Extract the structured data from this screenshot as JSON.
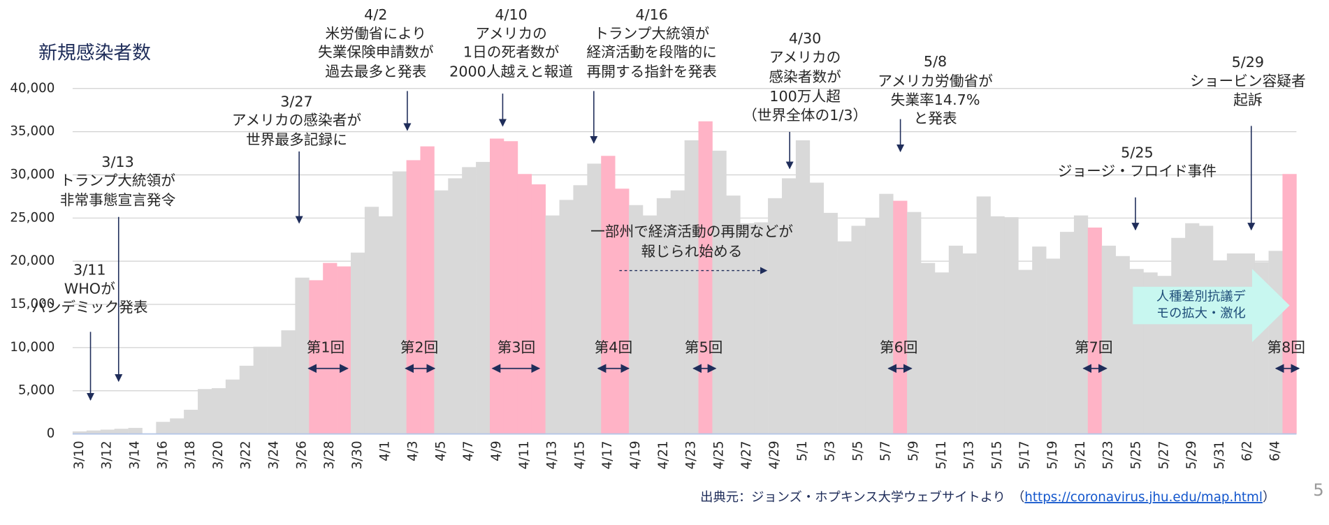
{
  "chart_data": {
    "type": "bar",
    "title": "新規感染者数",
    "categories": [
      "3/10",
      null,
      "3/12",
      null,
      "3/14",
      null,
      "3/16",
      null,
      "3/18",
      null,
      "3/20",
      null,
      "3/22",
      null,
      "3/24",
      null,
      "3/26",
      null,
      "3/28",
      null,
      "3/30",
      null,
      "4/1",
      null,
      "4/3",
      null,
      "4/5",
      null,
      "4/7",
      null,
      "4/9",
      null,
      "4/11",
      null,
      "4/13",
      null,
      "4/15",
      null,
      "4/17",
      null,
      "4/19",
      null,
      "4/21",
      null,
      "4/23",
      null,
      "4/25",
      null,
      "4/27",
      null,
      "4/29",
      null,
      "5/1",
      null,
      "5/3",
      null,
      "5/5",
      null,
      "5/7",
      null,
      "5/9",
      null,
      "5/11",
      null,
      "5/13",
      null,
      "5/15",
      null,
      "5/17",
      null,
      "5/19",
      null,
      "5/21",
      null,
      "5/23",
      null,
      "5/25",
      null,
      "5/27",
      null,
      "5/29",
      null,
      "5/31",
      null,
      "6/2",
      null,
      "6/4",
      null
    ],
    "values": [
      300,
      400,
      500,
      600,
      700,
      null,
      1400,
      1800,
      2800,
      5200,
      5300,
      6300,
      7900,
      10100,
      10100,
      12000,
      18100,
      17800,
      19800,
      19400,
      21000,
      26300,
      25200,
      30400,
      31700,
      33300,
      28200,
      29600,
      30900,
      31500,
      34200,
      33900,
      30100,
      28900,
      25300,
      27100,
      28800,
      31300,
      32200,
      28400,
      26500,
      25300,
      27300,
      28200,
      34000,
      36200,
      32800,
      27600,
      24400,
      24500,
      27300,
      29600,
      34000,
      29100,
      25600,
      22300,
      24100,
      25000,
      27800,
      27000,
      25700,
      19800,
      18700,
      21800,
      20900,
      27500,
      25200,
      25100,
      19000,
      21700,
      20300,
      23400,
      25300,
      23900,
      21800,
      20600,
      19100,
      18700,
      18300,
      22700,
      24400,
      24100,
      20100,
      20900,
      20900,
      19900,
      21200,
      30100
    ],
    "colors": [
      "#d9d9d9",
      "#d9d9d9",
      "#d9d9d9",
      "#d9d9d9",
      "#d9d9d9",
      "#d9d9d9",
      "#d9d9d9",
      "#d9d9d9",
      "#d9d9d9",
      "#d9d9d9",
      "#d9d9d9",
      "#d9d9d9",
      "#d9d9d9",
      "#d9d9d9",
      "#d9d9d9",
      "#d9d9d9",
      "#d9d9d9",
      "#ffb3c6",
      "#ffb3c6",
      "#ffb3c6",
      "#d9d9d9",
      "#d9d9d9",
      "#d9d9d9",
      "#d9d9d9",
      "#ffb3c6",
      "#ffb3c6",
      "#d9d9d9",
      "#d9d9d9",
      "#d9d9d9",
      "#d9d9d9",
      "#ffb3c6",
      "#ffb3c6",
      "#ffb3c6",
      "#ffb3c6",
      "#d9d9d9",
      "#d9d9d9",
      "#d9d9d9",
      "#d9d9d9",
      "#ffb3c6",
      "#ffb3c6",
      "#d9d9d9",
      "#d9d9d9",
      "#d9d9d9",
      "#d9d9d9",
      "#d9d9d9",
      "#ffb3c6",
      "#d9d9d9",
      "#d9d9d9",
      "#d9d9d9",
      "#d9d9d9",
      "#d9d9d9",
      "#d9d9d9",
      "#d9d9d9",
      "#d9d9d9",
      "#d9d9d9",
      "#d9d9d9",
      "#d9d9d9",
      "#d9d9d9",
      "#d9d9d9",
      "#ffb3c6",
      "#d9d9d9",
      "#d9d9d9",
      "#d9d9d9",
      "#d9d9d9",
      "#d9d9d9",
      "#d9d9d9",
      "#d9d9d9",
      "#d9d9d9",
      "#d9d9d9",
      "#d9d9d9",
      "#d9d9d9",
      "#d9d9d9",
      "#d9d9d9",
      "#ffb3c6",
      "#d9d9d9",
      "#d9d9d9",
      "#d9d9d9",
      "#d9d9d9",
      "#d9d9d9",
      "#d9d9d9",
      "#d9d9d9",
      "#d9d9d9",
      "#d9d9d9",
      "#d9d9d9",
      "#d9d9d9",
      "#d9d9d9",
      "#d9d9d9",
      "#ffb3c6"
    ],
    "ylim": [
      0,
      40000
    ],
    "yticks": [
      0,
      {
        "value": 5000,
        "label": "5,000"
      },
      {
        "value": 10000,
        "label": "10,000"
      },
      {
        "value": 15000,
        "label": "15,000"
      },
      {
        "value": 20000,
        "label": "20,000"
      },
      {
        "value": 25000,
        "label": "25,000"
      },
      {
        "value": 30000,
        "label": "30,000"
      },
      {
        "value": 35000,
        "label": "35,000"
      },
      {
        "value": 40000,
        "label": "40,000"
      }
    ],
    "grid": true,
    "annotations": [
      {
        "lines": [
          "3/11",
          "WHOが",
          "パンデミック発表"
        ]
      },
      {
        "lines": [
          "3/13",
          "トランプ大統領が",
          "非常事態宣言発令"
        ]
      },
      {
        "lines": [
          "3/27",
          "アメリカの感染者が",
          "世界最多記録に"
        ]
      },
      {
        "lines": [
          "4/2",
          "米労働省により",
          "失業保険申請数が",
          "過去最多と発表"
        ]
      },
      {
        "lines": [
          "4/10",
          "アメリカの",
          "1日の死者数が",
          "2000人越えと報道"
        ]
      },
      {
        "lines": [
          "4/16",
          "トランプ大統領が",
          "経済活動を段階的に",
          "再開する指針を発表"
        ]
      },
      {
        "lines": [
          "4/30",
          "アメリカの",
          "感染者数が",
          "100万人超",
          "（世界全体の1/3）"
        ]
      },
      {
        "lines": [
          "5/8",
          "アメリカ労働省が",
          "失業率14.7%",
          "と発表"
        ]
      },
      {
        "lines": [
          "5/25",
          "ジョージ・フロイド事件"
        ]
      },
      {
        "lines": [
          "5/29",
          "ショービン容疑者",
          "起訴"
        ]
      },
      {
        "lines": [
          "一部州で経済活動の再開などが",
          "報じられ始める"
        ]
      }
    ],
    "callout": {
      "lines": [
        "人種差別抗議デ",
        "モの拡大・激化"
      ]
    },
    "rounds": [
      "第1回",
      "第2回",
      "第3回",
      "第4回",
      "第5回",
      "第6回",
      "第7回",
      "第8回"
    ],
    "source": "出典元：ジョンズ・ホプキンス大学ウェブサイトより　（",
    "source_link": "https://coronavirus.jhu.edu/map.html",
    "source_end": "）",
    "page_number": "5"
  }
}
